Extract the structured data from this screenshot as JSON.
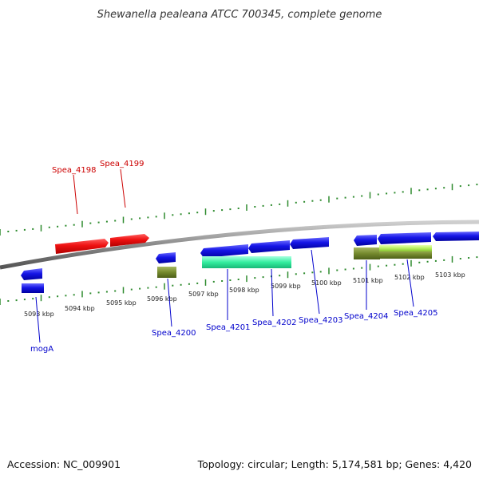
{
  "title": "Shewanella pealeana ATCC 700345, complete genome",
  "footer": {
    "accession": "Accession: NC_009901",
    "summary": "Topology: circular; Length: 5,174,581 bp; Genes: 4,420"
  },
  "colors": {
    "forward_label": "#cc0000",
    "reverse_label": "#0000cc",
    "tick": "#2e8b2e",
    "backbone": "#8c8c8c"
  },
  "ticks": [
    {
      "label": "5093 kbp"
    },
    {
      "label": "5094 kbp"
    },
    {
      "label": "5095 kbp"
    },
    {
      "label": "5096 kbp"
    },
    {
      "label": "5097 kbp"
    },
    {
      "label": "5098 kbp"
    },
    {
      "label": "5099 kbp"
    },
    {
      "label": "5100 kbp"
    },
    {
      "label": "5101 kbp"
    },
    {
      "label": "5102 kbp"
    },
    {
      "label": "5103 kbp"
    }
  ],
  "genes": [
    {
      "label": "Spea_4198",
      "strand": "forward"
    },
    {
      "label": "Spea_4199",
      "strand": "forward"
    },
    {
      "label": "mogA",
      "strand": "reverse"
    },
    {
      "label": "Spea_4200",
      "strand": "reverse"
    },
    {
      "label": "Spea_4201",
      "strand": "reverse"
    },
    {
      "label": "Spea_4202",
      "strand": "reverse"
    },
    {
      "label": "Spea_4203",
      "strand": "reverse"
    },
    {
      "label": "Spea_4204",
      "strand": "reverse"
    },
    {
      "label": "Spea_4205",
      "strand": "reverse"
    }
  ]
}
